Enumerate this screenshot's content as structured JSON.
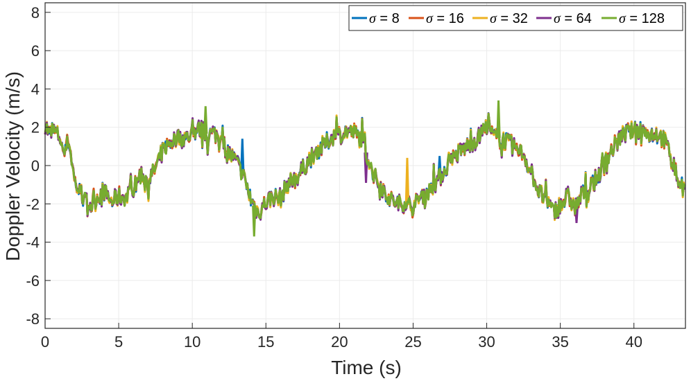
{
  "chart_data": {
    "type": "line",
    "title": "",
    "xlabel": "Time (s)",
    "ylabel": "Doppler Velocity (m/s)",
    "xlim": [
      0,
      43.5
    ],
    "ylim": [
      -8.5,
      8.5
    ],
    "xticks": [
      0,
      5,
      10,
      15,
      20,
      25,
      30,
      35,
      40
    ],
    "yticks": [
      8,
      6,
      4,
      2,
      0,
      -2,
      -4,
      -6,
      -8
    ],
    "xtick_labels": [
      "0",
      "5",
      "10",
      "15",
      "20",
      "25",
      "30",
      "35",
      "40"
    ],
    "ytick_labels": [
      "8",
      "6",
      "4",
      "2",
      "0",
      "-2",
      "-4",
      "-6",
      "-8"
    ],
    "grid": true,
    "legend": {
      "placement": "top-right",
      "orientation": "horizontal"
    },
    "series": [
      {
        "name": "σ = 8",
        "symbol": "σ",
        "rest": " = 8",
        "color": "#0072BD"
      },
      {
        "name": "σ = 16",
        "symbol": "σ",
        "rest": " = 16",
        "color": "#D95319"
      },
      {
        "name": "σ = 32",
        "symbol": "σ",
        "rest": " = 32",
        "color": "#EDB120"
      },
      {
        "name": "σ = 64",
        "symbol": "σ",
        "rest": " = 64",
        "color": "#7E2F8E"
      },
      {
        "name": "σ = 128",
        "symbol": "σ",
        "rest": " = 128",
        "color": "#77AC30"
      }
    ],
    "base_curve": {
      "x": [
        0,
        0.3,
        0.6,
        1.0,
        1.3,
        1.6,
        2.0,
        2.4,
        2.8,
        3.2,
        3.6,
        4.0,
        4.5,
        5.0,
        5.5,
        6.0,
        6.5,
        7.0,
        7.5,
        8.0,
        8.5,
        9.0,
        9.5,
        10.0,
        10.5,
        11.0,
        11.5,
        12.0,
        12.5,
        13.0,
        13.5,
        14.0,
        14.5,
        15.0,
        15.5,
        16.0,
        16.5,
        17.0,
        17.5,
        18.0,
        18.5,
        19.0,
        19.5,
        20.0,
        20.5,
        21.0,
        21.5,
        22.0,
        22.5,
        23.0,
        23.5,
        24.0,
        24.5,
        25.0,
        25.5,
        26.0,
        26.5,
        27.0,
        27.5,
        28.0,
        28.5,
        29.0,
        29.5,
        30.0,
        30.5,
        31.0,
        31.5,
        32.0,
        32.5,
        33.0,
        33.5,
        34.0,
        34.5,
        35.0,
        35.5,
        36.0,
        36.5,
        37.0,
        37.5,
        38.0,
        38.5,
        39.0,
        39.5,
        40.0,
        40.5,
        41.0,
        41.5,
        42.0,
        42.5,
        43.0,
        43.5
      ],
      "y": [
        2.2,
        1.6,
        1.8,
        1.5,
        0.6,
        1.4,
        -0.8,
        -1.5,
        -1.9,
        -2.1,
        -1.6,
        -1.3,
        -1.9,
        -1.6,
        -1.7,
        -1.2,
        -0.4,
        -0.8,
        -0.1,
        0.8,
        1.2,
        1.5,
        1.4,
        1.7,
        1.9,
        1.6,
        1.7,
        1.3,
        0.6,
        0.2,
        -0.6,
        -1.8,
        -2.5,
        -1.9,
        -1.6,
        -1.7,
        -0.9,
        -0.7,
        -0.2,
        0.4,
        0.8,
        1.1,
        1.5,
        1.6,
        1.8,
        1.7,
        1.4,
        0.2,
        -0.7,
        -1.3,
        -1.8,
        -2.0,
        -1.9,
        -2.2,
        -1.6,
        -1.4,
        -0.9,
        -0.4,
        0.2,
        0.6,
        0.9,
        1.2,
        1.5,
        2.1,
        1.5,
        1.4,
        1.2,
        0.9,
        0.6,
        -0.3,
        -1.3,
        -1.8,
        -2.4,
        -2.1,
        -1.6,
        -2.2,
        -1.5,
        -1.3,
        -0.6,
        0.1,
        0.8,
        1.4,
        1.7,
        1.8,
        1.9,
        1.6,
        1.7,
        1.4,
        0.6,
        -0.8,
        -1.4
      ]
    },
    "spikes": [
      {
        "x": 13.4,
        "y": 1.4,
        "series": "σ = 8"
      },
      {
        "x": 26.8,
        "y": 0.5,
        "series": "σ = 8"
      },
      {
        "x": 8.2,
        "y": 1.3,
        "series": "σ = 8"
      },
      {
        "x": 1.5,
        "y": 1.6,
        "series": "σ = 16"
      },
      {
        "x": 21.8,
        "y": -0.9,
        "series": "σ = 64"
      },
      {
        "x": 24.6,
        "y": 0.4,
        "series": "σ = 32"
      },
      {
        "x": 36.1,
        "y": -3.0,
        "series": "σ = 64"
      },
      {
        "x": 14.2,
        "y": -3.7,
        "series": "σ = 128"
      },
      {
        "x": 30.8,
        "y": 3.4,
        "series": "σ = 128"
      },
      {
        "x": 10.9,
        "y": 3.1,
        "series": "σ = 128"
      }
    ]
  }
}
